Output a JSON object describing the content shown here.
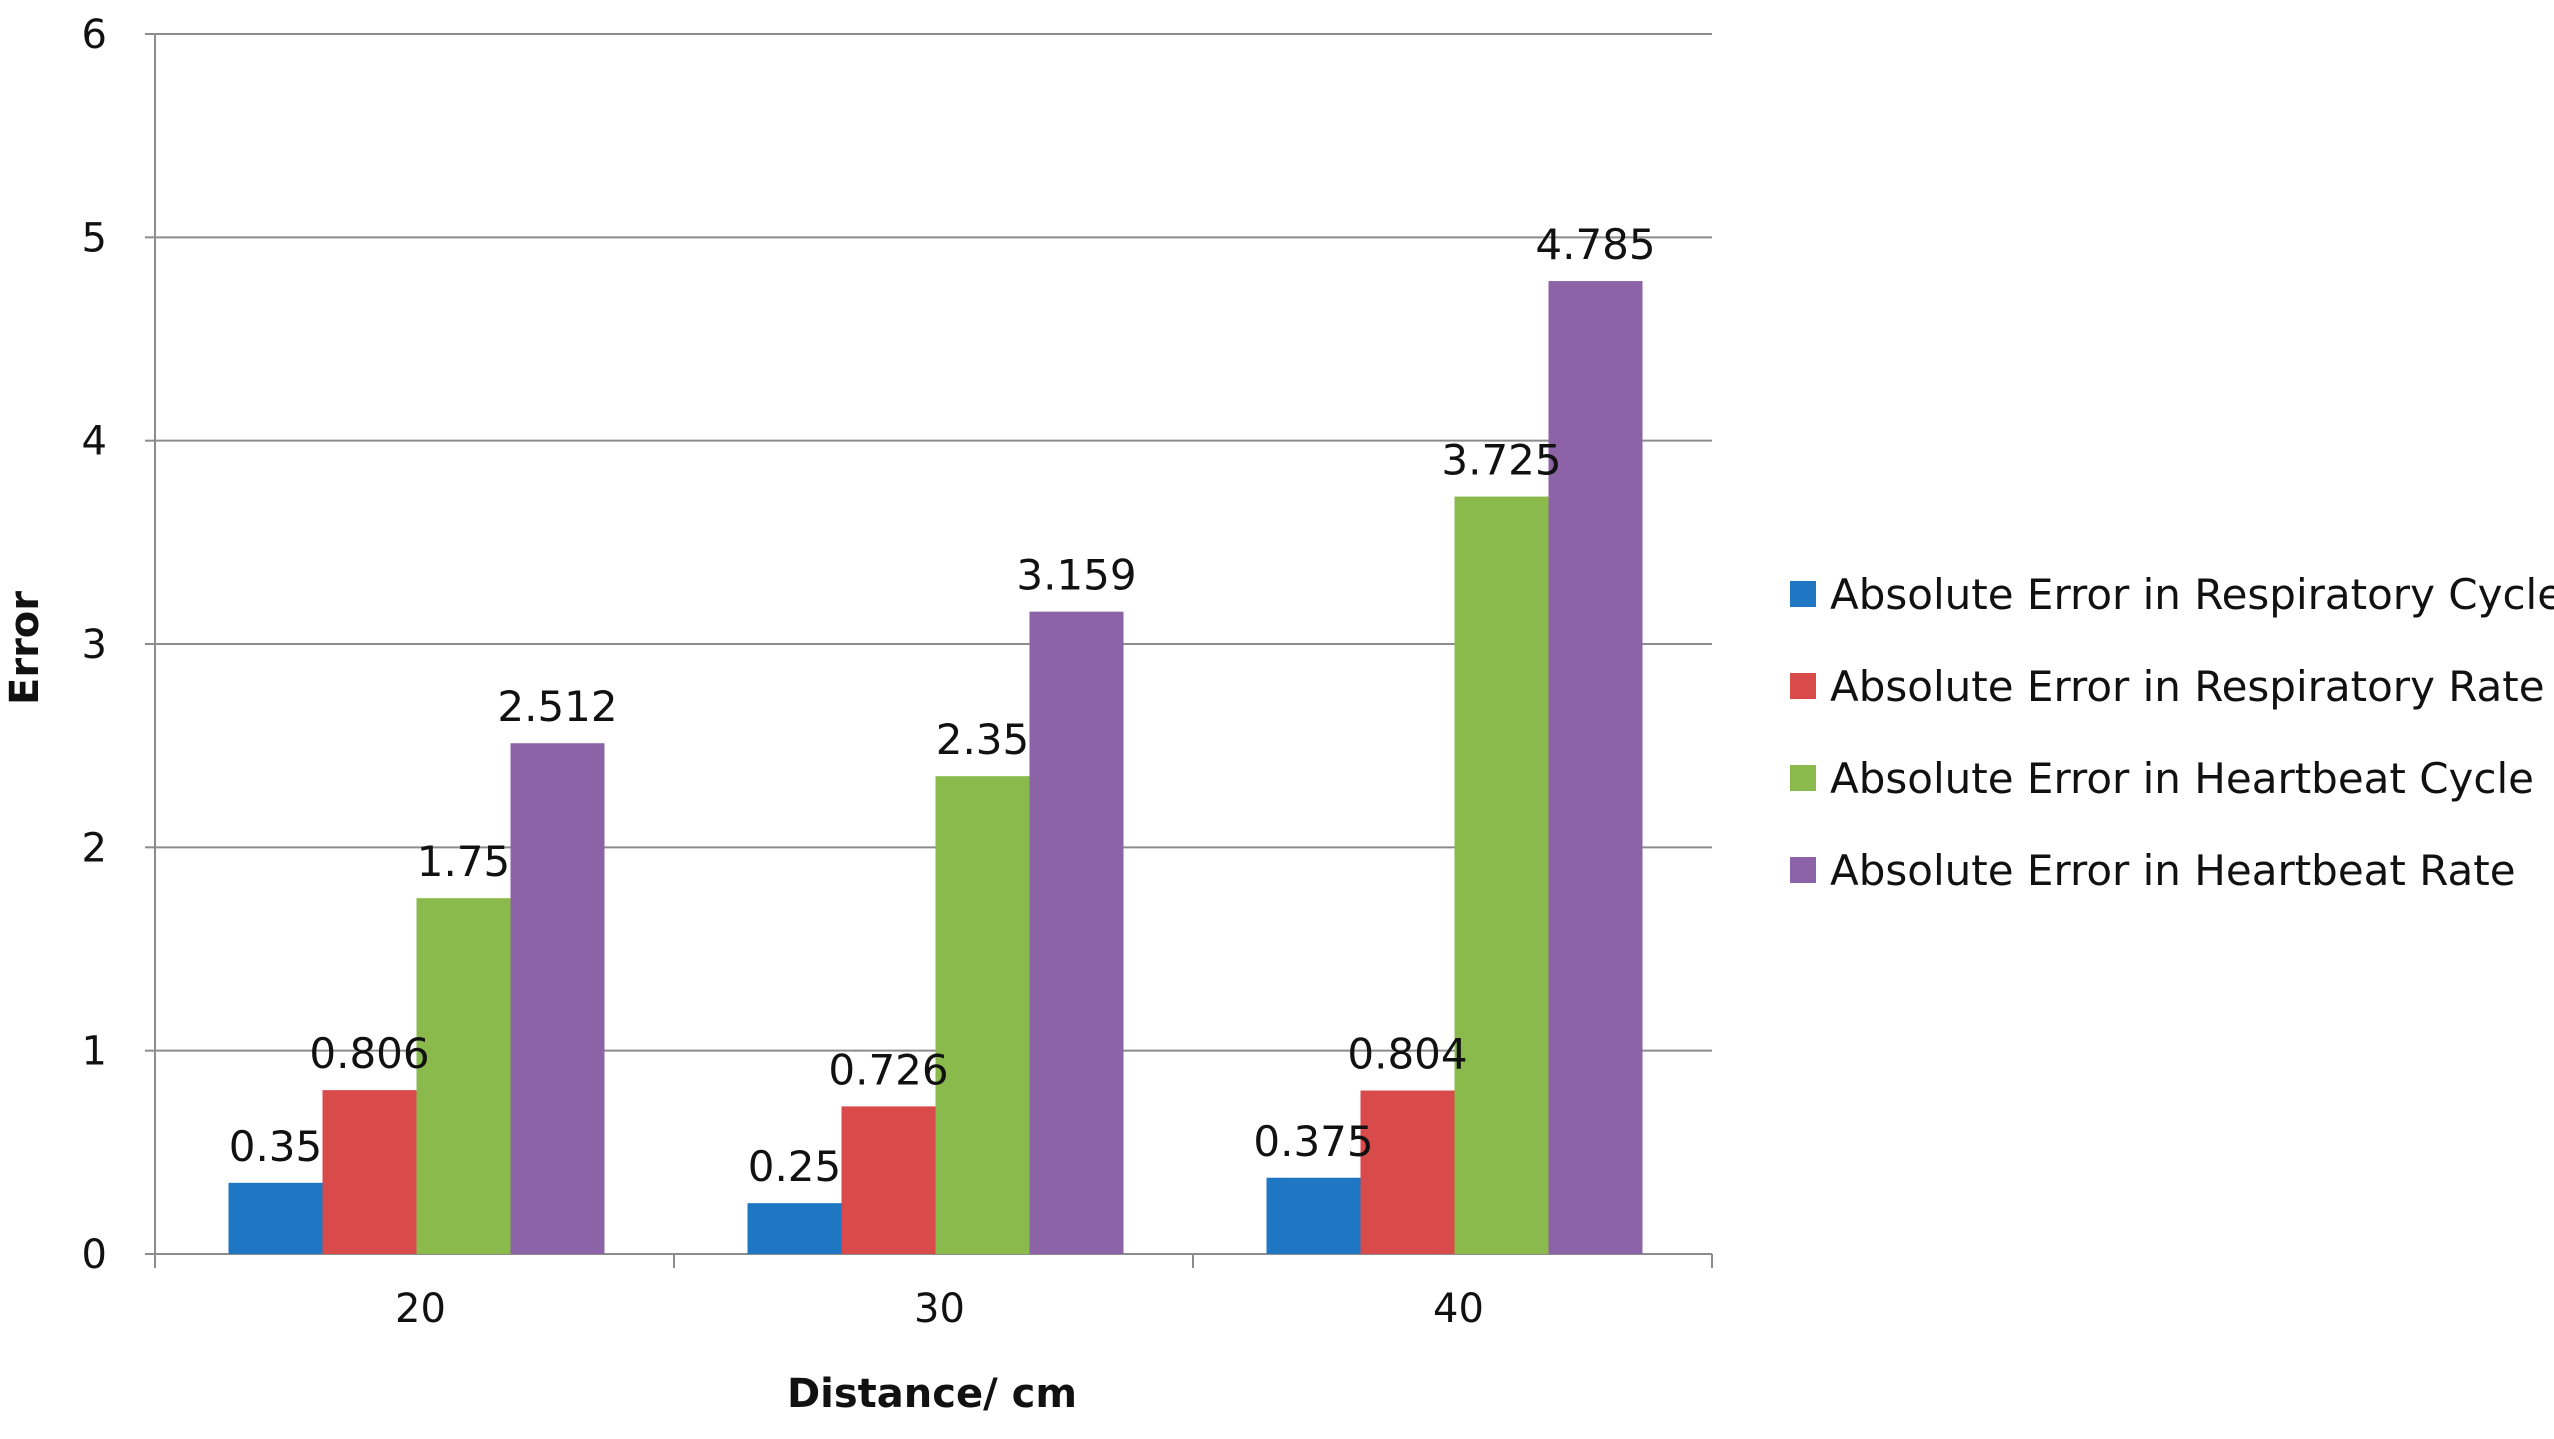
{
  "chart_data": {
    "type": "bar",
    "title": "",
    "xlabel": "Distance/ cm",
    "ylabel": "Error",
    "categories": [
      "20",
      "30",
      "40"
    ],
    "ylim": [
      0,
      6
    ],
    "yticks": [
      "0",
      "1",
      "2",
      "3",
      "4",
      "5",
      "6"
    ],
    "grid": true,
    "legend_position": "right",
    "series": [
      {
        "name": "Absolute Error in Respiratory Cycle",
        "color": "#1f77c4",
        "values": [
          0.35,
          0.25,
          0.375
        ],
        "labels": [
          "0.35",
          "0.25",
          "0.375"
        ]
      },
      {
        "name": "Absolute Error in Respiratory Rate",
        "color": "#d94a4a",
        "values": [
          0.806,
          0.726,
          0.804
        ],
        "labels": [
          "0.806",
          "0.726",
          "0.804"
        ]
      },
      {
        "name": "Absolute Error in Heartbeat Cycle",
        "color": "#8bba4c",
        "values": [
          1.75,
          2.35,
          3.725
        ],
        "labels": [
          "1.75",
          "2.35",
          "3.725"
        ]
      },
      {
        "name": "Absolute Error in Heartbeat Rate",
        "color": "#8b63a6",
        "values": [
          2.512,
          3.159,
          4.785
        ],
        "labels": [
          "2.512",
          "3.159",
          "4.785"
        ]
      }
    ]
  }
}
